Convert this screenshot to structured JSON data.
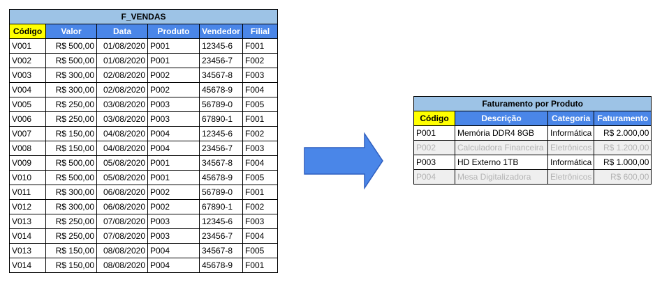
{
  "vendas": {
    "title": "F_VENDAS",
    "headers": [
      "Código",
      "Valor",
      "Data",
      "Produto",
      "Vendedor",
      "Filial"
    ],
    "rows": [
      [
        "V001",
        "R$ 500,00",
        "01/08/2020",
        "P001",
        "12345-6",
        "F001"
      ],
      [
        "V002",
        "R$ 500,00",
        "01/08/2020",
        "P001",
        "23456-7",
        "F002"
      ],
      [
        "V003",
        "R$ 300,00",
        "02/08/2020",
        "P002",
        "34567-8",
        "F003"
      ],
      [
        "V004",
        "R$ 300,00",
        "02/08/2020",
        "P002",
        "45678-9",
        "F004"
      ],
      [
        "V005",
        "R$ 250,00",
        "03/08/2020",
        "P003",
        "56789-0",
        "F005"
      ],
      [
        "V006",
        "R$ 250,00",
        "03/08/2020",
        "P003",
        "67890-1",
        "F001"
      ],
      [
        "V007",
        "R$ 150,00",
        "04/08/2020",
        "P004",
        "12345-6",
        "F002"
      ],
      [
        "V008",
        "R$ 150,00",
        "04/08/2020",
        "P004",
        "23456-7",
        "F003"
      ],
      [
        "V009",
        "R$ 500,00",
        "05/08/2020",
        "P001",
        "34567-8",
        "F004"
      ],
      [
        "V010",
        "R$ 500,00",
        "05/08/2020",
        "P001",
        "45678-9",
        "F005"
      ],
      [
        "V011",
        "R$ 300,00",
        "06/08/2020",
        "P002",
        "56789-0",
        "F001"
      ],
      [
        "V012",
        "R$ 300,00",
        "06/08/2020",
        "P002",
        "67890-1",
        "F002"
      ],
      [
        "V013",
        "R$ 250,00",
        "07/08/2020",
        "P003",
        "12345-6",
        "F003"
      ],
      [
        "V014",
        "R$ 250,00",
        "07/08/2020",
        "P003",
        "23456-7",
        "F004"
      ],
      [
        "V013",
        "R$ 150,00",
        "08/08/2020",
        "P004",
        "34567-8",
        "F005"
      ],
      [
        "V014",
        "R$ 150,00",
        "08/08/2020",
        "P004",
        "45678-9",
        "F001"
      ]
    ]
  },
  "faturamento": {
    "title": "Faturamento por Produto",
    "headers": [
      "Código",
      "Descrição",
      "Categoria",
      "Faturamento"
    ],
    "rows": [
      {
        "cells": [
          "P001",
          "Memória DDR4 8GB",
          "Informática",
          "R$ 2.000,00"
        ],
        "dimmed": false
      },
      {
        "cells": [
          "P002",
          "Calculadora Financeira",
          "Eletrônicos",
          "R$ 1.200,00"
        ],
        "dimmed": true
      },
      {
        "cells": [
          "P003",
          "HD Externo 1TB",
          "Informática",
          "R$ 1.000,00"
        ],
        "dimmed": false
      },
      {
        "cells": [
          "P004",
          "Mesa Digitalizadora",
          "Eletrônicos",
          "R$ 600,00"
        ],
        "dimmed": true
      }
    ]
  },
  "colors": {
    "title_fill": "#9dc3e6",
    "header_fill": "#4a86e8",
    "key_header_fill": "#ffff00",
    "arrow_fill": "#4a86e8",
    "dim_fill": "#efefef",
    "dim_text": "#b3b3b3"
  }
}
